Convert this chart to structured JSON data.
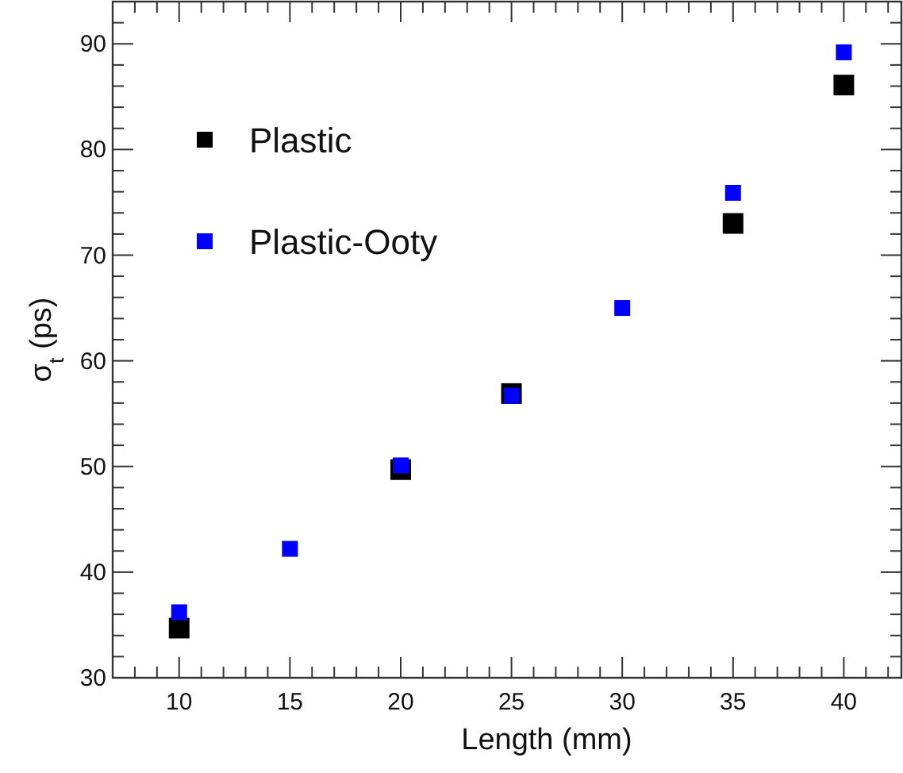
{
  "chart_data": {
    "type": "scatter",
    "xlabel": "Length (mm)",
    "ylabel": "σ$_{t}$ (ps)",
    "x": [
      10,
      15,
      20,
      25,
      30,
      35,
      40
    ],
    "series": [
      {
        "name": "Plastic",
        "color": "#000000",
        "values": [
          34.7,
          null,
          49.7,
          56.9,
          null,
          73.0,
          86.1
        ]
      },
      {
        "name": "Plastic-Ooty",
        "color": "#0000ff",
        "values": [
          36.2,
          42.2,
          50.1,
          56.7,
          65.0,
          75.9,
          89.2
        ]
      }
    ],
    "xlim": [
      7,
      42.6
    ],
    "xticks": [
      {
        "value": 7,
        "label": null
      },
      {
        "value": 8,
        "label": null
      },
      {
        "value": 9,
        "label": null
      },
      10,
      {
        "value": 11,
        "label": null
      },
      {
        "value": 12,
        "label": null
      },
      {
        "value": 13,
        "label": null
      },
      {
        "value": 14,
        "label": null
      },
      15,
      {
        "value": 16,
        "label": null
      },
      {
        "value": 17,
        "label": null
      },
      {
        "value": 18,
        "label": null
      },
      {
        "value": 19,
        "label": null
      },
      20,
      {
        "value": 21,
        "label": null
      },
      {
        "value": 22,
        "label": null
      },
      {
        "value": 23,
        "label": null
      },
      {
        "value": 24,
        "label": null
      },
      25,
      {
        "value": 26,
        "label": null
      },
      {
        "value": 27,
        "label": null
      },
      {
        "value": 28,
        "label": null
      },
      {
        "value": 29,
        "label": null
      },
      30,
      {
        "value": 31,
        "label": null
      },
      {
        "value": 32,
        "label": null
      },
      {
        "value": 33,
        "label": null
      },
      {
        "value": 34,
        "label": null
      },
      35,
      {
        "value": 36,
        "label": null
      },
      {
        "value": 37,
        "label": null
      },
      {
        "value": 38,
        "label": null
      },
      {
        "value": 39,
        "label": null
      },
      40,
      {
        "value": 41,
        "label": null
      },
      {
        "value": 42,
        "label": null
      }
    ],
    "ylim": [
      30,
      94
    ],
    "yticks": [
      30,
      {
        "value": 32,
        "label": null
      },
      {
        "value": 34,
        "label": null
      },
      {
        "value": 36,
        "label": null
      },
      {
        "value": 38,
        "label": null
      },
      40,
      {
        "value": 42,
        "label": null
      },
      {
        "value": 44,
        "label": null
      },
      {
        "value": 46,
        "label": null
      },
      {
        "value": 48,
        "label": null
      },
      50,
      {
        "value": 52,
        "label": null
      },
      {
        "value": 54,
        "label": null
      },
      {
        "value": 56,
        "label": null
      },
      {
        "value": 58,
        "label": null
      },
      60,
      {
        "value": 62,
        "label": null
      },
      {
        "value": 64,
        "label": null
      },
      {
        "value": 66,
        "label": null
      },
      {
        "value": 68,
        "label": null
      },
      70,
      {
        "value": 72,
        "label": null
      },
      {
        "value": 74,
        "label": null
      },
      {
        "value": 76,
        "label": null
      },
      {
        "value": 78,
        "label": null
      },
      80,
      {
        "value": 82,
        "label": null
      },
      {
        "value": 84,
        "label": null
      },
      {
        "value": 86,
        "label": null
      },
      {
        "value": 88,
        "label": null
      },
      90,
      {
        "value": 92,
        "label": null
      }
    ],
    "marker": "square",
    "legend": "top left",
    "grid": false
  }
}
